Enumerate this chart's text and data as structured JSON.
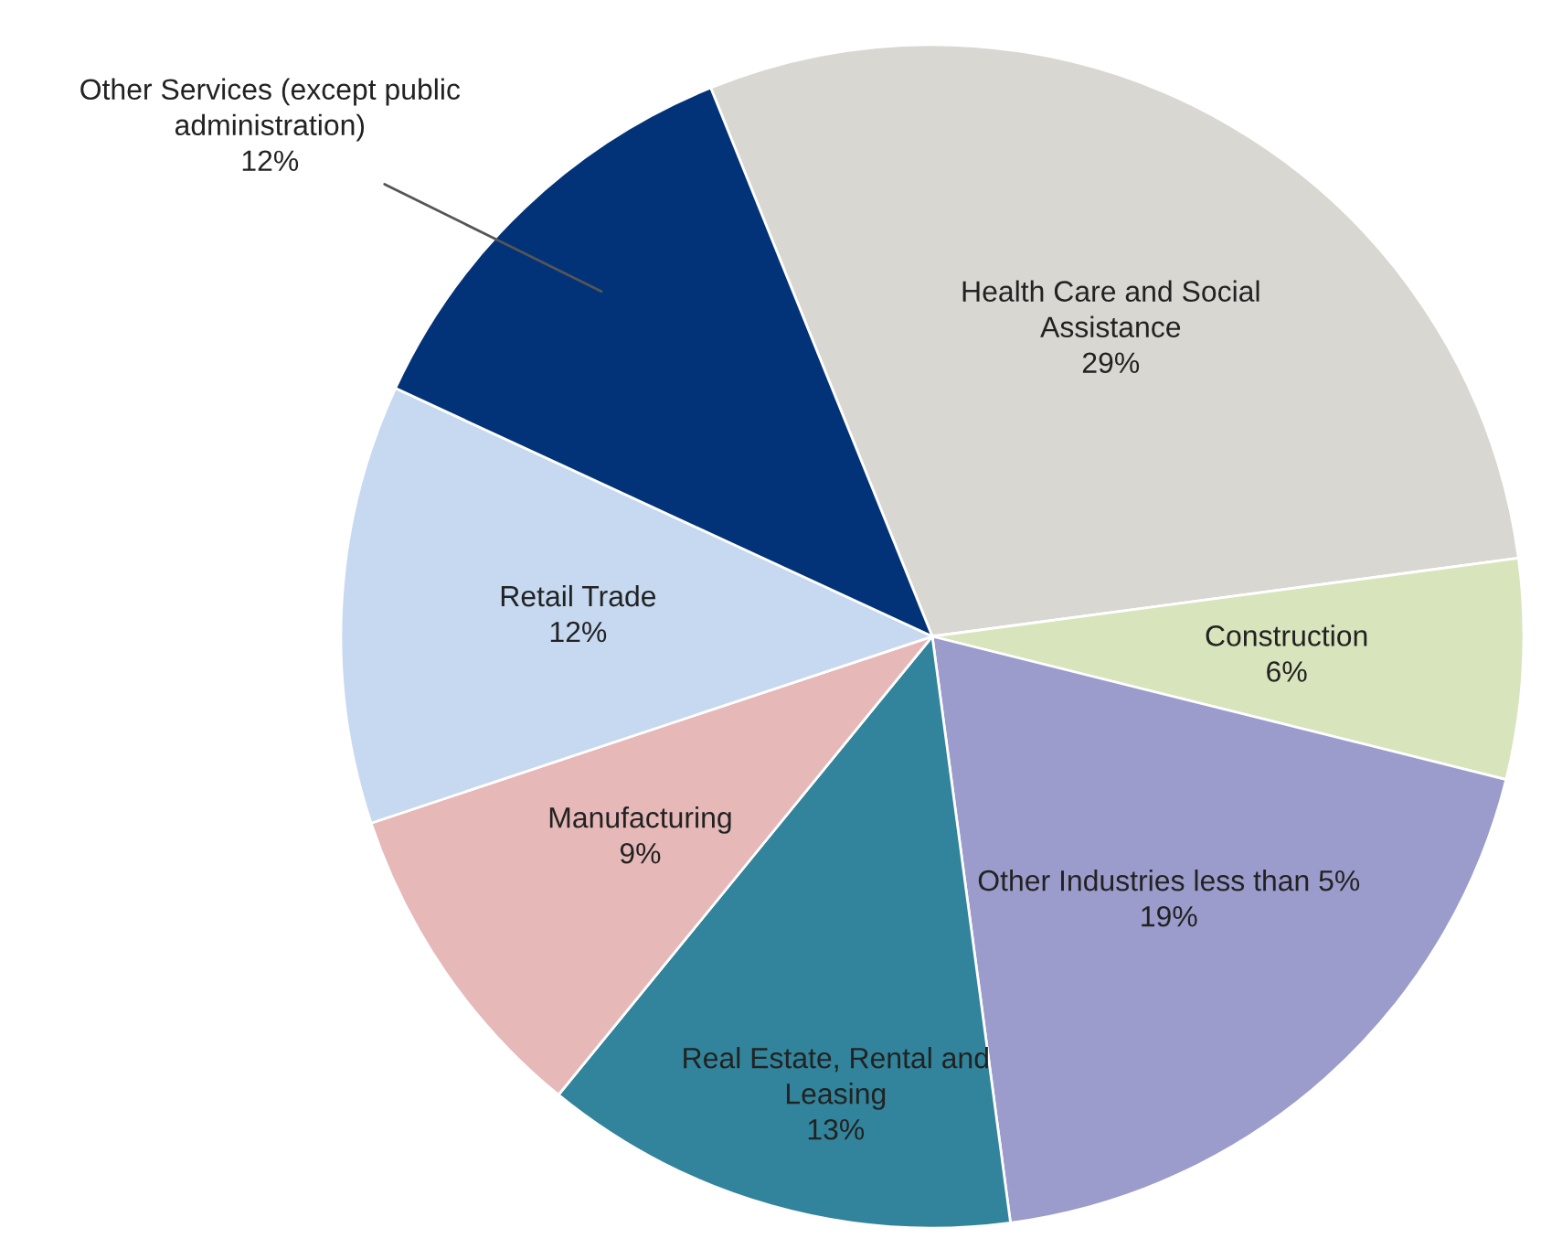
{
  "chart_data": {
    "type": "pie",
    "categories": [
      "Health Care and Social Assistance",
      "Construction",
      "Other Industries less than 5%",
      "Real Estate, Rental and Leasing",
      "Manufacturing",
      "Retail Trade",
      "Other Services (except public administration)"
    ],
    "values": [
      29,
      6,
      19,
      13,
      9,
      12,
      12
    ],
    "colors": [
      "#d9d7d2",
      "#d8e4bc",
      "#9b9bcc",
      "#31849b",
      "#e6b9b8",
      "#c6d9f1",
      "#023378"
    ],
    "value_labels": [
      "29%",
      "6%",
      "19%",
      "13%",
      "9%",
      "12%",
      "12%"
    ],
    "legend": false
  }
}
